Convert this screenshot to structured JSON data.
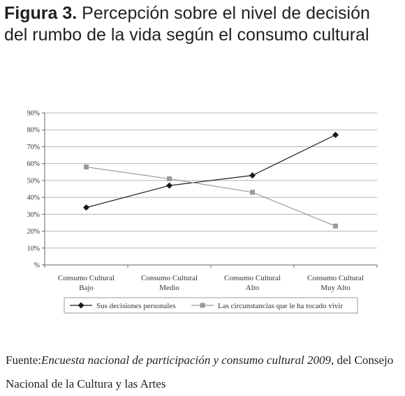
{
  "title": {
    "prefix": "Figura 3.",
    "text": "Percepción sobre el nivel de decisión del rumbo de la vida según el consumo cultural"
  },
  "source": {
    "label": "Fuente:",
    "title": "Encuesta nacional de participación y consumo cultural 2009",
    "rest": ", del Consejo Nacional de la Cultura y las Artes"
  },
  "chart_data": {
    "type": "line",
    "categories": [
      [
        "Consumo Cultural",
        "Bajo"
      ],
      [
        "Consumo Cultural",
        "Medio"
      ],
      [
        "Consumo Cultural",
        "Alto"
      ],
      [
        "Consumo Cultural",
        "Muy Alto"
      ]
    ],
    "y_ticks": [
      "%",
      "10%",
      "20%",
      "30%",
      "40%",
      "50%",
      "60%",
      "70%",
      "80%",
      "90%"
    ],
    "ylim": [
      0,
      90
    ],
    "grid": true,
    "legend_position": "bottom",
    "series": [
      {
        "name": "Sus decisiones personales",
        "values": [
          34,
          47,
          53,
          77
        ],
        "color": "#1a1a1a",
        "marker": "diamond"
      },
      {
        "name": "Las circunstancias que le ha tocado vivir",
        "values": [
          58,
          51,
          43,
          23
        ],
        "color": "#9a9a9a",
        "marker": "square"
      }
    ]
  }
}
